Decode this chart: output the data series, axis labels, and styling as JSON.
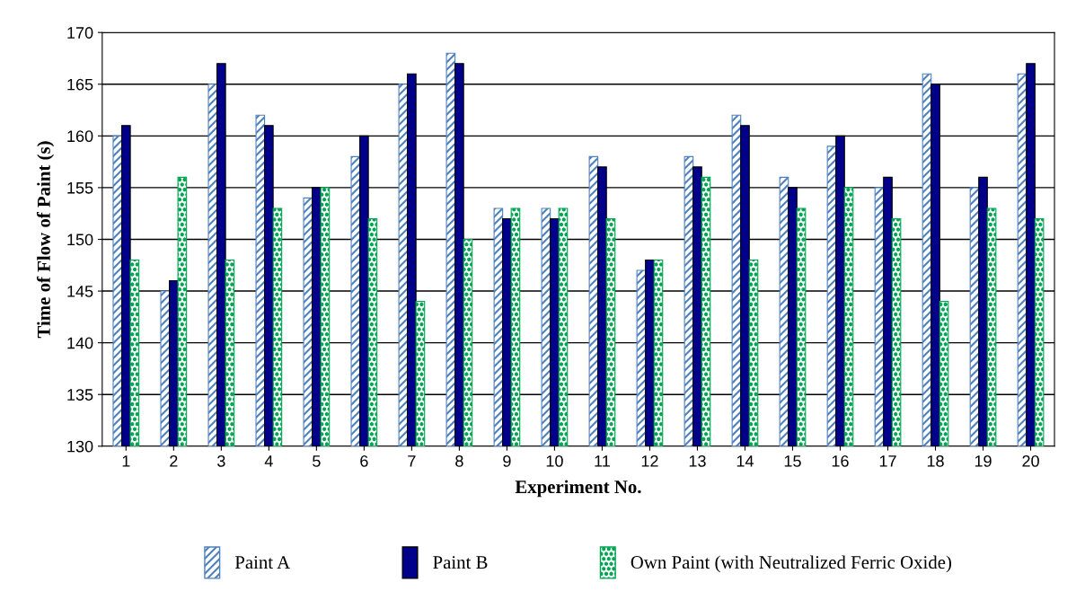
{
  "chart_data": {
    "type": "bar",
    "xlabel": "Experiment No.",
    "ylabel": "Time of Flow of Paint (s)",
    "categories": [
      "1",
      "2",
      "3",
      "4",
      "5",
      "6",
      "7",
      "8",
      "9",
      "10",
      "11",
      "12",
      "13",
      "14",
      "15",
      "16",
      "17",
      "18",
      "19",
      "20"
    ],
    "series": [
      {
        "name": "Paint A",
        "color": "#4f81bd",
        "values": [
          160,
          145,
          165,
          162,
          154,
          158,
          165,
          168,
          153,
          153,
          158,
          147,
          158,
          162,
          156,
          159,
          155,
          166,
          155,
          166
        ]
      },
      {
        "name": "Paint B",
        "color": "#00008b",
        "values": [
          161,
          146,
          167,
          161,
          155,
          160,
          166,
          167,
          152,
          152,
          157,
          148,
          157,
          161,
          155,
          160,
          156,
          165,
          156,
          167
        ]
      },
      {
        "name": "Own Paint (with Neutralized Ferric Oxide)",
        "color": "#00a651",
        "values": [
          148,
          156,
          148,
          153,
          155,
          152,
          144,
          150,
          153,
          153,
          152,
          148,
          156,
          148,
          153,
          155,
          152,
          144,
          153,
          152
        ]
      }
    ],
    "ylim": [
      130,
      170
    ],
    "yticks": [
      130,
      135,
      140,
      145,
      150,
      155,
      160,
      165,
      170
    ],
    "grid": "y",
    "legend": "bottom"
  }
}
